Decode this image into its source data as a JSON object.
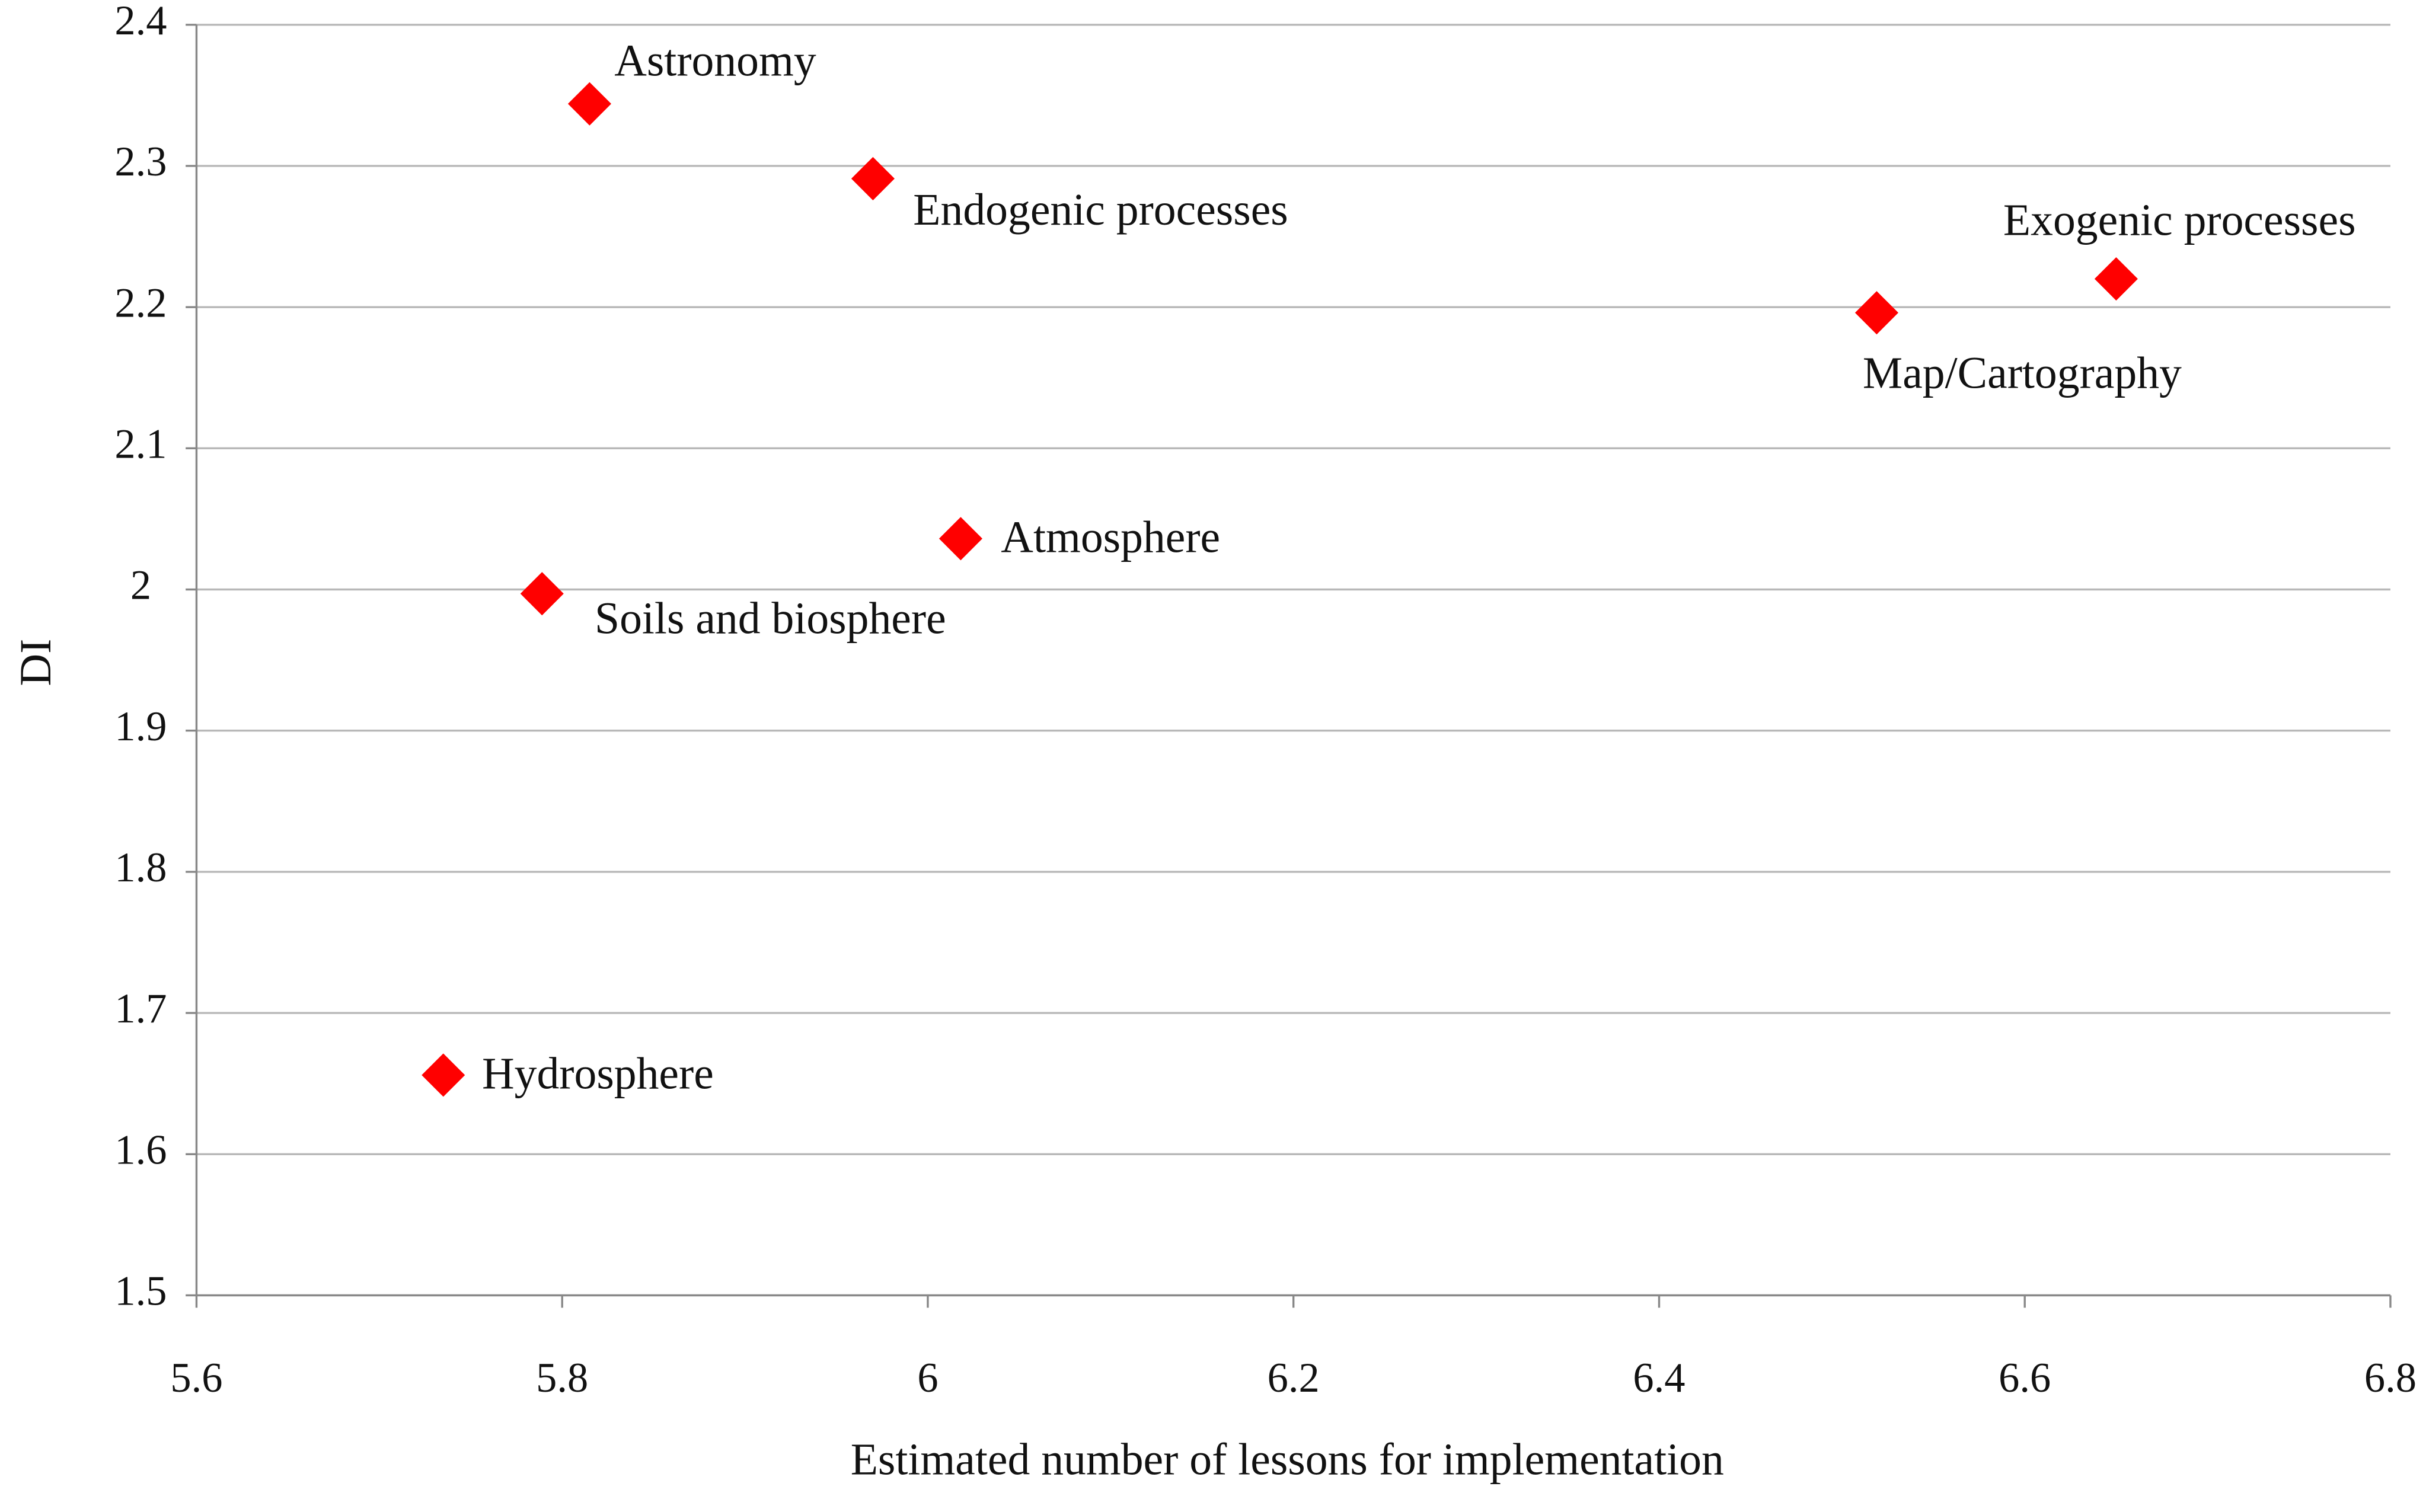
{
  "chart_data": {
    "type": "scatter",
    "xlabel": "Estimated number of lessons for implementation",
    "ylabel": "DI",
    "xlim": [
      5.6,
      6.8
    ],
    "xticks": [
      5.6,
      5.8,
      6,
      6.2,
      6.4,
      6.6,
      6.8
    ],
    "ylim": [
      1.5,
      2.4
    ],
    "yticks": [
      1.5,
      1.6,
      1.7,
      1.8,
      1.9,
      2,
      2.1,
      2.2,
      2.3,
      2.4
    ],
    "grid": true,
    "series": [
      {
        "color": "#ff0000",
        "x": [
          5.815,
          5.97,
          6.65,
          6.519,
          6.018,
          5.789,
          5.735
        ],
        "values": [
          2.344,
          2.291,
          2.22,
          2.196,
          2.036,
          1.997,
          1.656
        ],
        "point_labels": [
          "Astronomy",
          "Endogenic processes",
          "Exogenic processes",
          "Map/Cartography",
          "Atmosphere",
          "Soils and biosphere",
          "Hydrosphere"
        ]
      }
    ]
  }
}
